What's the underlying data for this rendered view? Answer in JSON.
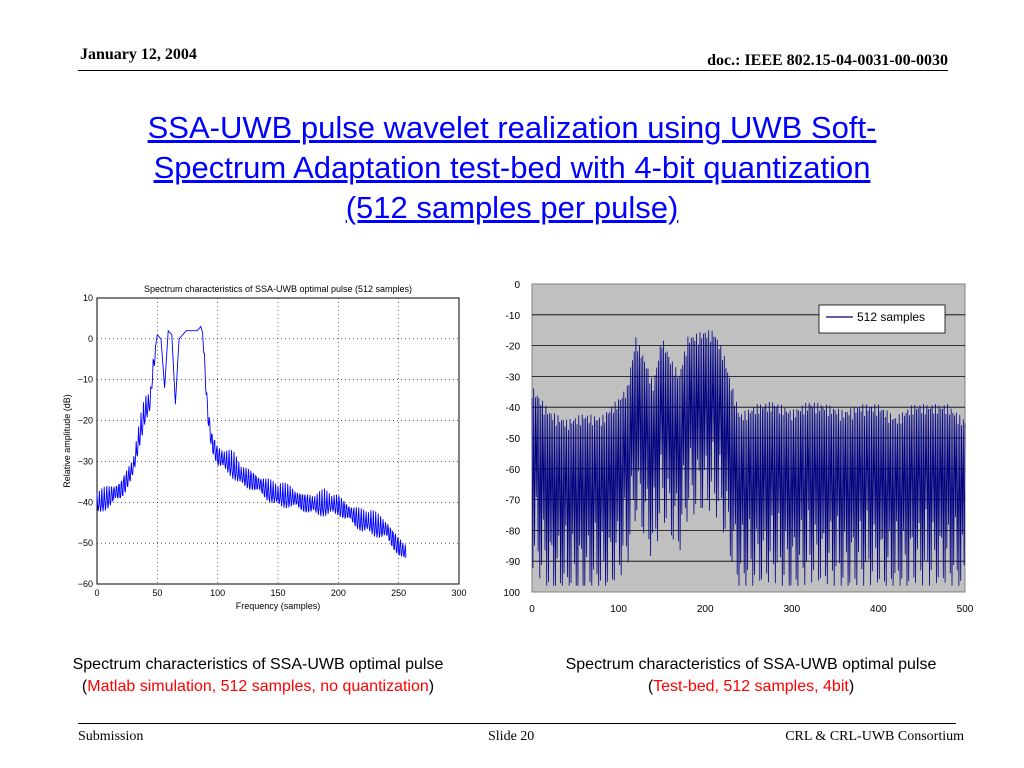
{
  "header": {
    "date": "January 12, 2004",
    "doc": "doc.: IEEE 802.15-04-0031-00-0030"
  },
  "slide_title": {
    "line1": "SSA-UWB pulse wavelet realization using UWB Soft-",
    "line2": "Spectrum Adaptation test-bed with 4-bit quantization",
    "line3": "(512 samples per pulse)"
  },
  "captions": {
    "left": {
      "line1": "Spectrum characteristics of SSA-UWB optimal pulse",
      "paren_open": "(",
      "detail": "Matlab simulation, 512 samples, no quantization",
      "paren_close": ")"
    },
    "right": {
      "line1": "Spectrum characteristics of SSA-UWB optimal pulse",
      "paren_open": "(",
      "detail": "Test-bed, 512 samples, 4bit",
      "paren_close": ")"
    }
  },
  "footer": {
    "left": "Submission",
    "center": "Slide 20",
    "right": "CRL & CRL-UWB Consortium"
  },
  "chart_data": [
    {
      "type": "line",
      "title": "Spectrum characteristics of SSA-UWB optimal pulse (512 samples)",
      "xlabel": "Frequency (samples)",
      "ylabel": "Relative amplitude (dB)",
      "xlim": [
        0,
        300
      ],
      "ylim": [
        -60,
        10
      ],
      "xticks": [
        "0",
        "50",
        "100",
        "150",
        "200",
        "250",
        "300"
      ],
      "yticks": [
        "10",
        "0",
        "−10",
        "−20",
        "−30",
        "−40",
        "−50",
        "−60"
      ],
      "grid": "dotted",
      "line_color": "#0000ff",
      "series": [
        {
          "x": [
            0,
            10,
            20,
            30,
            36,
            40,
            44,
            47,
            50,
            53,
            56,
            59,
            62,
            65,
            68,
            71,
            74,
            77,
            80,
            83,
            86,
            88,
            90,
            92,
            95,
            100,
            110,
            120,
            130,
            140,
            150,
            160,
            170,
            180,
            190,
            200,
            210,
            220,
            230,
            240,
            250,
            256
          ],
          "y": [
            -40,
            -38,
            -36,
            -31,
            -22,
            -17,
            -15,
            -5,
            1,
            0,
            -12,
            2,
            1,
            -16,
            0,
            1,
            2,
            2,
            2,
            2,
            3,
            1,
            -10,
            -18,
            -24,
            -28,
            -30,
            -33,
            -34,
            -36,
            -38,
            -38,
            -39,
            -40,
            -40,
            -40,
            -42,
            -44,
            -45,
            -46,
            -50,
            -52
          ]
        }
      ]
    },
    {
      "type": "line",
      "xlim": [
        0,
        500
      ],
      "ylim": [
        -100,
        0
      ],
      "xticks": [
        "0",
        "100",
        "200",
        "300",
        "400",
        "500"
      ],
      "yticks": [
        "0",
        "-10",
        "-20",
        "-30",
        "-40",
        "-50",
        "-60",
        "-70",
        "-80",
        "-90",
        "100"
      ],
      "grid": "solid",
      "plot_bg": "#c0c0c0",
      "legend_position": "top-right",
      "line_color": "#000080",
      "series": [
        {
          "name": "512 samples",
          "x": [
            0,
            20,
            40,
            60,
            80,
            100,
            110,
            120,
            130,
            140,
            150,
            160,
            170,
            180,
            190,
            200,
            210,
            220,
            230,
            240,
            260,
            280,
            300,
            320,
            340,
            360,
            380,
            400,
            420,
            440,
            460,
            480,
            500
          ],
          "y": [
            -37,
            -45,
            -48,
            -46,
            -47,
            -41,
            -37,
            -21,
            -28,
            -36,
            -21,
            -28,
            -33,
            -21,
            -20,
            -19,
            -19,
            -25,
            -36,
            -46,
            -43,
            -42,
            -45,
            -42,
            -43,
            -45,
            -43,
            -43,
            -47,
            -43,
            -43,
            -43,
            -48
          ]
        }
      ]
    }
  ]
}
